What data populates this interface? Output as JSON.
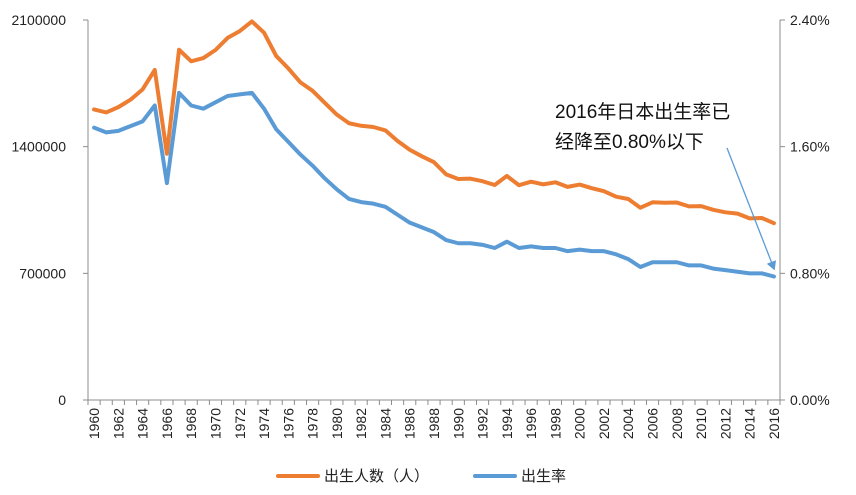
{
  "chart_data": {
    "type": "line",
    "categories": [
      "1960",
      "1961",
      "1962",
      "1963",
      "1964",
      "1965",
      "1966",
      "1967",
      "1968",
      "1969",
      "1970",
      "1971",
      "1972",
      "1973",
      "1974",
      "1975",
      "1976",
      "1977",
      "1978",
      "1979",
      "1980",
      "1981",
      "1982",
      "1983",
      "1984",
      "1985",
      "1986",
      "1987",
      "1988",
      "1989",
      "1990",
      "1991",
      "1992",
      "1993",
      "1994",
      "1995",
      "1996",
      "1997",
      "1998",
      "1999",
      "2000",
      "2001",
      "2002",
      "2003",
      "2004",
      "2005",
      "2006",
      "2007",
      "2008",
      "2009",
      "2010",
      "2011",
      "2012",
      "2013",
      "2014",
      "2015",
      "2016"
    ],
    "x_tick_labels": [
      "1960",
      "1962",
      "1964",
      "1966",
      "1968",
      "1970",
      "1972",
      "1974",
      "1976",
      "1978",
      "1980",
      "1982",
      "1984",
      "1986",
      "1988",
      "1990",
      "1992",
      "1994",
      "1996",
      "1998",
      "2000",
      "2002",
      "2004",
      "2006",
      "2008",
      "2010",
      "2012",
      "2014",
      "2016"
    ],
    "series": [
      {
        "name": "出生人数（人）",
        "axis": "left",
        "color": "#ED7D31",
        "values": [
          1606041,
          1589372,
          1618616,
          1659521,
          1716761,
          1823697,
          1360974,
          1935647,
          1871839,
          1889815,
          1934239,
          2000973,
          2038682,
          2091983,
          2029989,
          1901440,
          1832617,
          1755100,
          1708643,
          1642580,
          1576889,
          1529455,
          1515392,
          1508687,
          1489780,
          1431577,
          1382946,
          1346658,
          1314006,
          1246802,
          1221585,
          1223245,
          1208989,
          1188282,
          1238328,
          1187064,
          1206555,
          1191665,
          1203147,
          1177669,
          1190547,
          1170662,
          1153855,
          1123610,
          1110721,
          1062530,
          1092674,
          1089818,
          1091156,
          1070035,
          1071304,
          1050806,
          1037231,
          1029816,
          1003539,
          1005677,
          976978
        ]
      },
      {
        "name": "出生率",
        "axis": "right",
        "color": "#5B9BD5",
        "values": [
          1.72,
          1.69,
          1.7,
          1.73,
          1.76,
          1.86,
          1.37,
          1.94,
          1.86,
          1.84,
          1.88,
          1.92,
          1.93,
          1.94,
          1.84,
          1.71,
          1.63,
          1.55,
          1.48,
          1.4,
          1.33,
          1.27,
          1.25,
          1.24,
          1.22,
          1.17,
          1.12,
          1.09,
          1.06,
          1.01,
          0.99,
          0.99,
          0.98,
          0.96,
          1.0,
          0.96,
          0.97,
          0.96,
          0.96,
          0.94,
          0.95,
          0.94,
          0.94,
          0.92,
          0.89,
          0.84,
          0.87,
          0.87,
          0.87,
          0.85,
          0.85,
          0.83,
          0.82,
          0.81,
          0.8,
          0.8,
          0.78
        ]
      }
    ],
    "left_axis": {
      "min": 0,
      "max": 2100000,
      "ticks": [
        0,
        700000,
        1400000,
        2100000
      ],
      "tick_labels": [
        "0",
        "700000",
        "1400000",
        "2100000"
      ]
    },
    "right_axis": {
      "min": 0,
      "max": 2.4,
      "ticks": [
        0,
        0.8,
        1.6,
        2.4
      ],
      "tick_labels": [
        "0.00%",
        "0.80%",
        "1.60%",
        "2.40%"
      ]
    },
    "annotation": {
      "lines": [
        "2016年日本出生率已",
        "经降至0.80%以下"
      ],
      "points_to_category": "2016",
      "points_to_value": 0.78,
      "color": "#5B9BD5"
    },
    "legend": {
      "position": "bottom"
    },
    "title": "",
    "grid": false
  }
}
